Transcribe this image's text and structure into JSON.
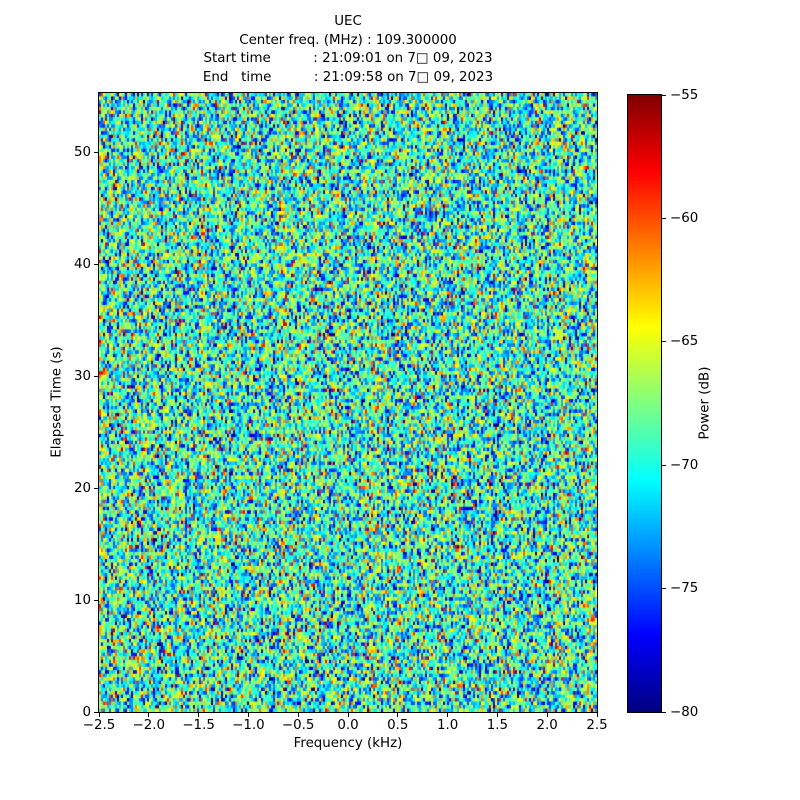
{
  "chart_data": {
    "type": "heatmap",
    "title": "UEC",
    "title_lines": [
      "UEC",
      "Center freq. (MHz) : 109.300000",
      "Start time          : 21:09:01 on 7□ 09, 2023",
      "End   time          : 21:09:58 on 7□ 09, 2023"
    ],
    "xlabel": "Frequency (kHz)",
    "ylabel": "Elapsed Time (s)",
    "xlim": [
      -2.5,
      2.5
    ],
    "ylim": [
      0,
      55.3
    ],
    "xtick_values": [
      -2.5,
      -2.0,
      -1.5,
      -1.0,
      -0.5,
      0.0,
      0.5,
      1.0,
      1.5,
      2.0,
      2.5
    ],
    "xtick_labels": [
      "−2.5",
      "−2.0",
      "−1.5",
      "−1.0",
      "−0.5",
      "0.0",
      "0.5",
      "1.0",
      "1.5",
      "2.0",
      "2.5"
    ],
    "ytick_values": [
      0,
      10,
      20,
      30,
      40,
      50
    ],
    "ytick_labels": [
      "0",
      "10",
      "20",
      "30",
      "40",
      "50"
    ],
    "grid": false,
    "background_color": "#ffffff",
    "colorbar": {
      "label": "Power (dB)",
      "vmin": -80,
      "vmax": -55,
      "tick_values": [
        -55,
        -60,
        -65,
        -70,
        -75,
        -80
      ],
      "tick_labels": [
        "−55",
        "−60",
        "−65",
        "−70",
        "−75",
        "−80"
      ],
      "colormap": "jet",
      "gradient_stops": [
        {
          "pos": 0,
          "color": "#000080"
        },
        {
          "pos": 12.5,
          "color": "#0000ff"
        },
        {
          "pos": 37.5,
          "color": "#00ffff"
        },
        {
          "pos": 62.5,
          "color": "#ffff00"
        },
        {
          "pos": 87.5,
          "color": "#ff0000"
        },
        {
          "pos": 100,
          "color": "#800000"
        }
      ]
    },
    "noise": {
      "description": "random broadband noise floor, no visible signal",
      "mean_db": -69.3,
      "std_db": 4.6,
      "col_sigma_db": 1.0,
      "cols": 249,
      "rows": 178,
      "seed": 7
    }
  }
}
